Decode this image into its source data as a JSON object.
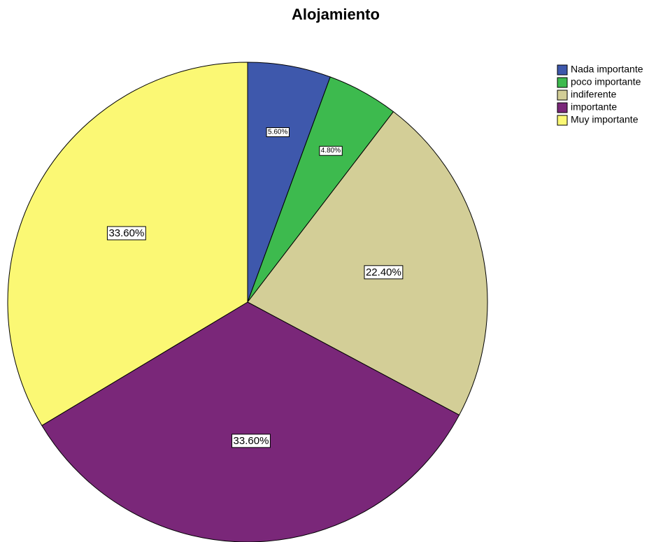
{
  "chart_data": {
    "type": "pie",
    "title": "Alojamiento",
    "categories": [
      "Nada importante",
      "poco importante",
      "indiferente",
      "importante",
      "Muy importante"
    ],
    "values": [
      5.6,
      4.8,
      22.4,
      33.6,
      33.6
    ],
    "value_labels": [
      "5.60%",
      "4.80%",
      "22.40%",
      "33.60%",
      "33.60%"
    ],
    "colors": [
      "#3e58ac",
      "#3dba4e",
      "#d3ce97",
      "#7a2779",
      "#fbf874"
    ],
    "legend": "top-right"
  }
}
